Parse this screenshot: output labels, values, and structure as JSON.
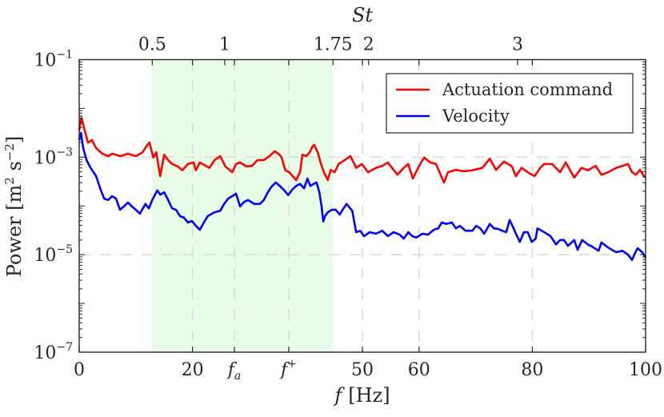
{
  "chart_data": {
    "type": "line",
    "title": "",
    "xlabel": "f [Hz]",
    "ylabel": "Power [m^2 s^-2]",
    "top_xlabel": "St",
    "xlim": [
      0,
      100
    ],
    "ylim": [
      1e-07,
      0.1
    ],
    "yscale": "log",
    "grid": "dashed, light gray, at x ticks and y = 1e-3, 1e-5",
    "legend_position": "upper right",
    "x_ticks": [
      {
        "value": 0,
        "label": "0"
      },
      {
        "value": 20,
        "label": "20"
      },
      {
        "value": 27.4,
        "label": "f_a"
      },
      {
        "value": 37.0,
        "label": "f^+"
      },
      {
        "value": 50,
        "label": "50"
      },
      {
        "value": 60,
        "label": "60"
      },
      {
        "value": 80,
        "label": "80"
      },
      {
        "value": 100,
        "label": "100"
      }
    ],
    "top_ticks": [
      {
        "f": 12.9,
        "label": "0.5"
      },
      {
        "f": 25.7,
        "label": "1"
      },
      {
        "f": 44.8,
        "label": "1.75"
      },
      {
        "f": 51.1,
        "label": "2"
      },
      {
        "f": 77.4,
        "label": "3"
      }
    ],
    "y_ticks": [
      {
        "exp": -1,
        "label": "10^-1"
      },
      {
        "exp": -3,
        "label": "10^-3"
      },
      {
        "exp": -5,
        "label": "10^-5"
      },
      {
        "exp": -7,
        "label": "10^-7"
      }
    ],
    "y_grid_exps": [
      -3,
      -5
    ],
    "shaded_band": {
      "x_start": 12.85,
      "x_end": 44.8,
      "color": "#e8fce8",
      "label": "St 0.5 – 1.75"
    },
    "series": [
      {
        "name": "Actuation command",
        "color": "#ff0000",
        "value_format": "[f_Hz, log10(Power)]",
        "points": [
          [
            0,
            -2.45
          ],
          [
            0.3,
            -2.24
          ],
          [
            0.4,
            -2.19
          ],
          [
            0.85,
            -2.4
          ],
          [
            1.55,
            -2.7
          ],
          [
            2.26,
            -2.65
          ],
          [
            2.97,
            -2.81
          ],
          [
            4.1,
            -2.93
          ],
          [
            5.1,
            -2.98
          ],
          [
            5.8,
            -2.93
          ],
          [
            6.5,
            -2.95
          ],
          [
            7.2,
            -2.98
          ],
          [
            8.6,
            -2.93
          ],
          [
            10.0,
            -2.98
          ],
          [
            11.2,
            -2.9
          ],
          [
            11.9,
            -2.77
          ],
          [
            12.4,
            -2.7
          ],
          [
            13.1,
            -3.01
          ],
          [
            13.6,
            -2.9
          ],
          [
            14.3,
            -3.39
          ],
          [
            15.0,
            -2.95
          ],
          [
            15.7,
            -3.06
          ],
          [
            16.4,
            -3.14
          ],
          [
            17.4,
            -3.19
          ],
          [
            18.2,
            -3.27
          ],
          [
            19.2,
            -3.14
          ],
          [
            20.2,
            -3.11
          ],
          [
            20.6,
            -3.27
          ],
          [
            21.3,
            -3.11
          ],
          [
            23.0,
            -3.22
          ],
          [
            23.9,
            -3.06
          ],
          [
            24.9,
            -2.98
          ],
          [
            25.8,
            -3.19
          ],
          [
            27.0,
            -3.31
          ],
          [
            27.7,
            -3.14
          ],
          [
            28.4,
            -3.11
          ],
          [
            29.5,
            -3.19
          ],
          [
            30.5,
            -3.18
          ],
          [
            31.5,
            -3.06
          ],
          [
            32.6,
            -3.06
          ],
          [
            33.6,
            -2.98
          ],
          [
            34.5,
            -2.88
          ],
          [
            35.2,
            -2.93
          ],
          [
            35.7,
            -3.0
          ],
          [
            36.4,
            -3.27
          ],
          [
            37.1,
            -3.31
          ],
          [
            37.7,
            -3.39
          ],
          [
            38.3,
            -3.47
          ],
          [
            39.0,
            -3.31
          ],
          [
            39.4,
            -2.95
          ],
          [
            40.1,
            -2.98
          ],
          [
            40.7,
            -2.9
          ],
          [
            41.2,
            -2.78
          ],
          [
            41.5,
            -2.75
          ],
          [
            42.1,
            -2.9
          ],
          [
            42.7,
            -3.14
          ],
          [
            43.2,
            -3.31
          ],
          [
            43.9,
            -3.47
          ],
          [
            44.4,
            -3.26
          ],
          [
            45.1,
            -3.31
          ],
          [
            45.8,
            -3.14
          ],
          [
            46.5,
            -3.09
          ],
          [
            47.9,
            -2.98
          ],
          [
            48.9,
            -3.22
          ],
          [
            49.9,
            -3.14
          ],
          [
            51.0,
            -3.31
          ],
          [
            52.4,
            -3.22
          ],
          [
            53.5,
            -3.18
          ],
          [
            54.5,
            -3.11
          ],
          [
            55.5,
            -3.26
          ],
          [
            56.2,
            -3.36
          ],
          [
            57.3,
            -3.22
          ],
          [
            58.1,
            -3.14
          ],
          [
            58.9,
            -3.44
          ],
          [
            60.2,
            -3.14
          ],
          [
            60.9,
            -3.01
          ],
          [
            62.0,
            -3.11
          ],
          [
            63.0,
            -3.14
          ],
          [
            64.4,
            -3.52
          ],
          [
            65.1,
            -3.31
          ],
          [
            66.5,
            -3.26
          ],
          [
            67.9,
            -3.29
          ],
          [
            69.4,
            -3.27
          ],
          [
            71.2,
            -3.22
          ],
          [
            72.5,
            -3.03
          ],
          [
            73.6,
            -3.26
          ],
          [
            75.0,
            -3.09
          ],
          [
            76.4,
            -3.19
          ],
          [
            77.1,
            -3.39
          ],
          [
            78.1,
            -3.22
          ],
          [
            79.2,
            -3.31
          ],
          [
            80.4,
            -3.39
          ],
          [
            81.4,
            -3.22
          ],
          [
            82.1,
            -3.14
          ],
          [
            83.5,
            -3.14
          ],
          [
            84.9,
            -3.31
          ],
          [
            85.9,
            -3.11
          ],
          [
            87.4,
            -3.42
          ],
          [
            88.7,
            -3.22
          ],
          [
            89.8,
            -3.27
          ],
          [
            91.2,
            -3.18
          ],
          [
            92.2,
            -3.36
          ],
          [
            93.4,
            -3.31
          ],
          [
            94.8,
            -3.22
          ],
          [
            95.9,
            -3.18
          ],
          [
            96.9,
            -3.14
          ],
          [
            97.6,
            -3.31
          ],
          [
            98.3,
            -3.36
          ],
          [
            99.0,
            -3.26
          ],
          [
            99.9,
            -3.42
          ]
        ]
      },
      {
        "name": "Velocity",
        "color": "#0000ff",
        "value_format": "[f_Hz, log10(Power)]",
        "points": [
          [
            0,
            -2.65
          ],
          [
            0.3,
            -2.5
          ],
          [
            0.7,
            -2.81
          ],
          [
            1.3,
            -3.06
          ],
          [
            2.0,
            -3.22
          ],
          [
            3.0,
            -3.39
          ],
          [
            3.7,
            -3.64
          ],
          [
            4.4,
            -3.85
          ],
          [
            5.1,
            -3.88
          ],
          [
            5.8,
            -3.8
          ],
          [
            6.5,
            -3.85
          ],
          [
            7.2,
            -4.08
          ],
          [
            7.9,
            -4.01
          ],
          [
            8.6,
            -3.93
          ],
          [
            9.3,
            -4.01
          ],
          [
            10.0,
            -4.08
          ],
          [
            10.7,
            -4.16
          ],
          [
            11.7,
            -3.96
          ],
          [
            12.3,
            -4.05
          ],
          [
            12.9,
            -3.88
          ],
          [
            13.8,
            -3.68
          ],
          [
            14.3,
            -3.77
          ],
          [
            15.0,
            -3.72
          ],
          [
            15.7,
            -3.88
          ],
          [
            16.4,
            -4.05
          ],
          [
            17.1,
            -4.08
          ],
          [
            17.8,
            -4.21
          ],
          [
            18.5,
            -4.24
          ],
          [
            19.2,
            -4.34
          ],
          [
            19.9,
            -4.31
          ],
          [
            20.6,
            -4.41
          ],
          [
            21.3,
            -4.49
          ],
          [
            22.0,
            -4.34
          ],
          [
            22.7,
            -4.21
          ],
          [
            23.9,
            -4.13
          ],
          [
            24.9,
            -4.1
          ],
          [
            25.6,
            -3.96
          ],
          [
            26.3,
            -3.85
          ],
          [
            27.0,
            -3.8
          ],
          [
            27.7,
            -3.75
          ],
          [
            28.4,
            -4.01
          ],
          [
            29.1,
            -3.92
          ],
          [
            29.8,
            -3.88
          ],
          [
            30.9,
            -3.96
          ],
          [
            31.9,
            -3.96
          ],
          [
            32.6,
            -3.88
          ],
          [
            33.3,
            -3.72
          ],
          [
            34.0,
            -3.6
          ],
          [
            34.7,
            -3.52
          ],
          [
            35.5,
            -3.6
          ],
          [
            36.2,
            -3.68
          ],
          [
            36.9,
            -3.78
          ],
          [
            37.6,
            -3.67
          ],
          [
            38.3,
            -3.59
          ],
          [
            39.0,
            -3.55
          ],
          [
            39.7,
            -3.64
          ],
          [
            40.3,
            -3.44
          ],
          [
            40.8,
            -3.59
          ],
          [
            41.4,
            -3.55
          ],
          [
            41.9,
            -3.52
          ],
          [
            42.4,
            -3.72
          ],
          [
            42.8,
            -4.01
          ],
          [
            43.1,
            -4.32
          ],
          [
            43.4,
            -4.21
          ],
          [
            43.9,
            -4.13
          ],
          [
            44.6,
            -4.08
          ],
          [
            45.3,
            -4.08
          ],
          [
            46.0,
            -4.18
          ],
          [
            46.5,
            -4.08
          ],
          [
            47.2,
            -3.96
          ],
          [
            48.2,
            -4.1
          ],
          [
            48.9,
            -4.54
          ],
          [
            49.6,
            -4.51
          ],
          [
            50.3,
            -4.62
          ],
          [
            51.3,
            -4.54
          ],
          [
            52.4,
            -4.57
          ],
          [
            53.5,
            -4.51
          ],
          [
            54.5,
            -4.62
          ],
          [
            55.5,
            -4.54
          ],
          [
            56.6,
            -4.59
          ],
          [
            57.3,
            -4.67
          ],
          [
            58.1,
            -4.54
          ],
          [
            58.8,
            -4.62
          ],
          [
            59.5,
            -4.65
          ],
          [
            60.6,
            -4.57
          ],
          [
            61.6,
            -4.59
          ],
          [
            62.6,
            -4.49
          ],
          [
            63.4,
            -4.46
          ],
          [
            64.0,
            -4.34
          ],
          [
            64.8,
            -4.37
          ],
          [
            65.8,
            -4.34
          ],
          [
            66.5,
            -4.46
          ],
          [
            67.2,
            -4.41
          ],
          [
            68.2,
            -4.51
          ],
          [
            69.4,
            -4.51
          ],
          [
            70.1,
            -4.41
          ],
          [
            70.8,
            -4.46
          ],
          [
            71.5,
            -4.57
          ],
          [
            72.5,
            -4.37
          ],
          [
            73.2,
            -4.46
          ],
          [
            73.9,
            -4.47
          ],
          [
            74.7,
            -4.51
          ],
          [
            75.4,
            -4.54
          ],
          [
            76.0,
            -4.29
          ],
          [
            76.7,
            -4.46
          ],
          [
            77.1,
            -4.57
          ],
          [
            77.8,
            -4.74
          ],
          [
            78.5,
            -4.54
          ],
          [
            79.2,
            -4.54
          ],
          [
            79.9,
            -4.74
          ],
          [
            80.6,
            -4.67
          ],
          [
            80.9,
            -4.46
          ],
          [
            82.1,
            -4.54
          ],
          [
            83.2,
            -4.62
          ],
          [
            84.2,
            -4.79
          ],
          [
            84.9,
            -4.7
          ],
          [
            85.6,
            -4.7
          ],
          [
            86.3,
            -4.82
          ],
          [
            87.4,
            -4.7
          ],
          [
            88.0,
            -4.9
          ],
          [
            88.8,
            -4.7
          ],
          [
            89.8,
            -4.79
          ],
          [
            90.5,
            -4.83
          ],
          [
            91.7,
            -4.92
          ],
          [
            92.2,
            -4.75
          ],
          [
            93.1,
            -4.83
          ],
          [
            93.6,
            -4.87
          ],
          [
            94.8,
            -4.95
          ],
          [
            95.9,
            -4.92
          ],
          [
            96.9,
            -5.0
          ],
          [
            97.6,
            -5.11
          ],
          [
            98.2,
            -4.95
          ],
          [
            98.6,
            -4.87
          ],
          [
            99.4,
            -4.95
          ],
          [
            100,
            -5.06
          ]
        ]
      }
    ]
  },
  "labels": {
    "xlabel_main": "f",
    "xlabel_unit": "[Hz]",
    "ylabel_text": "Power [m",
    "ylabel_sup1": "2",
    "ylabel_mid": " s",
    "ylabel_sup2": "−2",
    "ylabel_end": "]",
    "top_title_S": "St",
    "legend_actuation": "Actuation command",
    "legend_velocity": "Velocity"
  }
}
